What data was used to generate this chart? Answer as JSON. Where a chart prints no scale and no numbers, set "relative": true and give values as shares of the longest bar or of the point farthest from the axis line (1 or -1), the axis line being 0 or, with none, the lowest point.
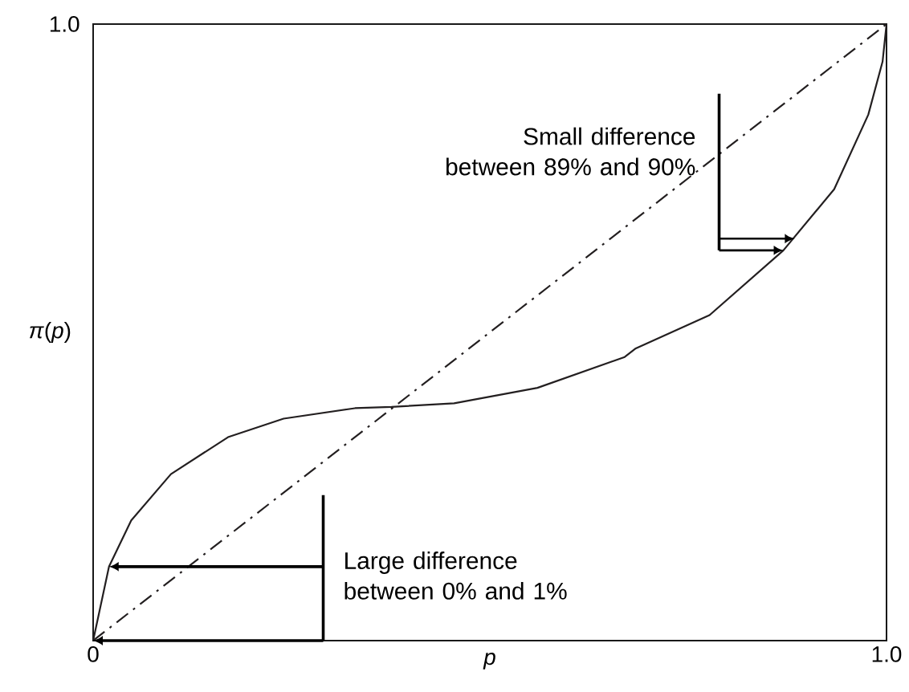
{
  "chart_data": {
    "type": "line",
    "xlabel": "p",
    "ylabel": "*π*(*p*)",
    "relative": true,
    "xlim": [
      0,
      1
    ],
    "xticks": [
      {
        "value": 0,
        "label": "0"
      },
      {
        "value": 1,
        "label": "1.0"
      }
    ],
    "marker": "none",
    "series": [
      {
        "color": "#231f20",
        "line_style": "solid",
        "x": [
          0,
          0.02,
          0.048,
          0.098,
          0.17,
          0.24,
          0.33,
          0.376,
          0.455,
          0.56,
          0.67,
          0.684,
          0.777,
          0.87,
          0.934,
          0.977,
          0.995,
          1
        ],
        "values": [
          0,
          0.12,
          0.195,
          0.27,
          0.33,
          0.36,
          0.377,
          0.379,
          0.385,
          0.41,
          0.46,
          0.474,
          0.528,
          0.633,
          0.732,
          0.853,
          0.939,
          1
        ]
      },
      {
        "color": "#231f20",
        "line_style": "dashdot",
        "x": [
          0,
          1
        ],
        "values": [
          0,
          1
        ]
      }
    ],
    "annotations": [
      "Large difference between 0% and 1%",
      "Small difference between 89% and 90%",
      "1.0"
    ]
  }
}
